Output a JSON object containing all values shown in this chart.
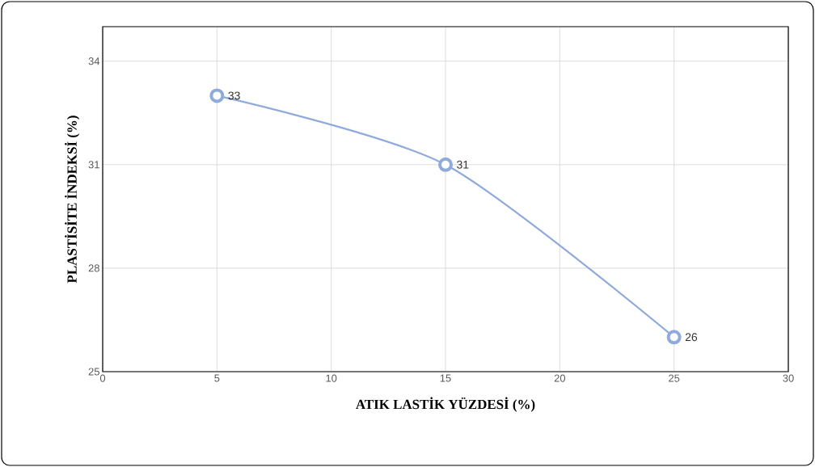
{
  "chart_data": {
    "type": "line",
    "xlabel": "ATIK LASTİK YÜZDESİ  (%)",
    "ylabel": "PLASTİSİTE İNDEKSİ (%)",
    "x": [
      5,
      15,
      25
    ],
    "values": [
      33,
      31,
      26
    ],
    "color": "#8faadc",
    "xlim": [
      0,
      30
    ],
    "ylim": [
      25,
      35
    ],
    "xticks": [
      0,
      5,
      10,
      15,
      20,
      25,
      30
    ],
    "yticks": [
      25,
      28,
      31,
      34
    ],
    "grid": true,
    "marker": "circle",
    "data_labels": true
  }
}
